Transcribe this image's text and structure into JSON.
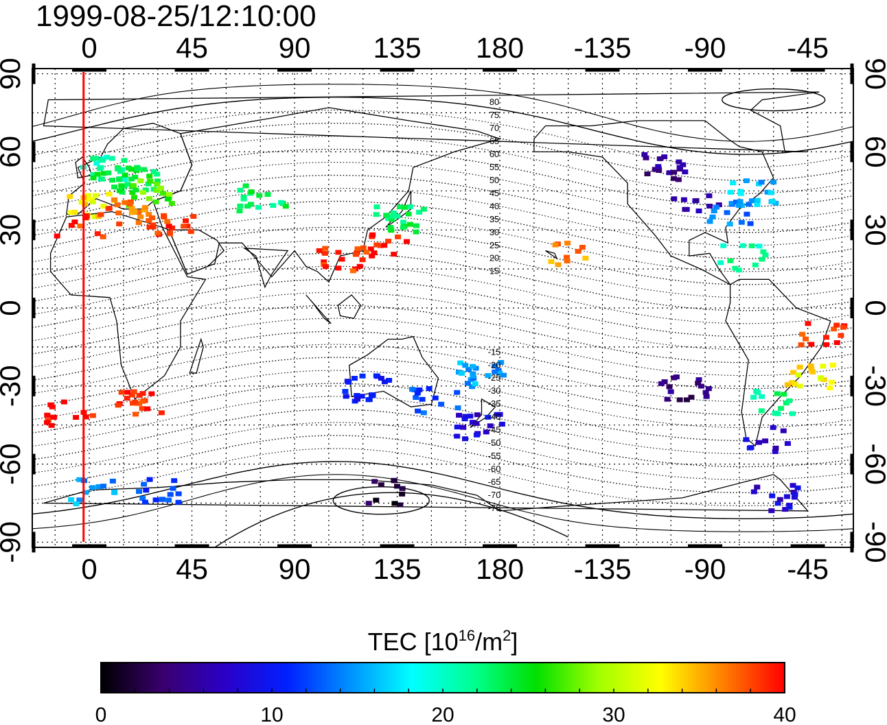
{
  "timestamp": "1999-08-25/12:10:00",
  "map": {
    "lon_ticks_bottom": [
      "0",
      "45",
      "90",
      "135",
      "180",
      "-135",
      "-90",
      "-45"
    ],
    "lon_ticks_top": [
      "0",
      "45",
      "90",
      "135",
      "180",
      "-135",
      "-90",
      "-45"
    ],
    "lat_ticks_left": [
      "90",
      "60",
      "30",
      "0",
      "-30",
      "-60",
      "-90"
    ],
    "lat_ticks_right": [
      "90",
      "60",
      "30",
      "0",
      "-30",
      "-60",
      "-90"
    ],
    "lon_range": [
      -25,
      335
    ],
    "lat_range": [
      -92,
      92
    ],
    "grid": true,
    "grid_step_deg": 15,
    "terminator_longitude": -2.5,
    "contour_labels": {
      "north": [
        "80",
        "75",
        "70",
        "65",
        "60",
        "55",
        "50",
        "45",
        "40",
        "35",
        "30",
        "25",
        "20",
        "15"
      ],
      "south": [
        "-15",
        "-20",
        "-25",
        "-30",
        "-35",
        "-40",
        "-45",
        "-50",
        "-55",
        "-60",
        "-65",
        "-70",
        "-75"
      ]
    }
  },
  "colorbar": {
    "title_prefix": "TEC  [10",
    "title_exp": "16",
    "title_mid": "/m",
    "title_exp2": "2",
    "title_suffix": "]",
    "tick_labels": [
      "0",
      "10",
      "20",
      "30",
      "40"
    ],
    "min": 0,
    "max": 40,
    "colors": [
      "#000000",
      "#3a006e",
      "#2a00c8",
      "#0020ff",
      "#0090ff",
      "#00ffff",
      "#00ff90",
      "#00e000",
      "#a0ff00",
      "#ffff00",
      "#ff8000",
      "#ff0000"
    ]
  },
  "chart_data": {
    "type": "heatmap",
    "title": "1999-08-25/12:10:00",
    "colorbar_label": "TEC [10^16/m^2]",
    "value_range": [
      0,
      40
    ],
    "cells": [
      {
        "lon": 5,
        "lat": 55,
        "tec": 21
      },
      {
        "lon": 10,
        "lat": 50,
        "tec": 24
      },
      {
        "lon": 20,
        "lat": 50,
        "tec": 24
      },
      {
        "lon": 25,
        "lat": 45,
        "tec": 27
      },
      {
        "lon": 0,
        "lat": 40,
        "tec": 33
      },
      {
        "lon": 15,
        "lat": 38,
        "tec": 37
      },
      {
        "lon": -5,
        "lat": 32,
        "tec": 39
      },
      {
        "lon": 35,
        "lat": 32,
        "tec": 39
      },
      {
        "lon": 75,
        "lat": 43,
        "tec": 23
      },
      {
        "lon": 135,
        "lat": 35,
        "tec": 23
      },
      {
        "lon": 130,
        "lat": 25,
        "tec": 40
      },
      {
        "lon": 110,
        "lat": 20,
        "tec": 39
      },
      {
        "lon": -150,
        "lat": 22,
        "tec": 36
      },
      {
        "lon": -110,
        "lat": 55,
        "tec": 5
      },
      {
        "lon": -95,
        "lat": 40,
        "tec": 7
      },
      {
        "lon": -80,
        "lat": 38,
        "tec": 14
      },
      {
        "lon": -70,
        "lat": 45,
        "tec": 16
      },
      {
        "lon": -75,
        "lat": 20,
        "tec": 21
      },
      {
        "lon": -40,
        "lat": -10,
        "tec": 39
      },
      {
        "lon": -45,
        "lat": -25,
        "tec": 33
      },
      {
        "lon": -60,
        "lat": -35,
        "tec": 22
      },
      {
        "lon": -65,
        "lat": -50,
        "tec": 8
      },
      {
        "lon": 120,
        "lat": -30,
        "tec": 10
      },
      {
        "lon": 150,
        "lat": -35,
        "tec": 12
      },
      {
        "lon": 170,
        "lat": -45,
        "tec": 8
      },
      {
        "lon": 170,
        "lat": -25,
        "tec": 15
      },
      {
        "lon": 20,
        "lat": -35,
        "tec": 39
      },
      {
        "lon": -10,
        "lat": -40,
        "tec": 40
      },
      {
        "lon": 0,
        "lat": -70,
        "tec": 15
      },
      {
        "lon": 30,
        "lat": -70,
        "tec": 12
      },
      {
        "lon": 130,
        "lat": -70,
        "tec": 2
      },
      {
        "lon": -60,
        "lat": -72,
        "tec": 8
      },
      {
        "lon": -100,
        "lat": -30,
        "tec": 4
      }
    ]
  }
}
